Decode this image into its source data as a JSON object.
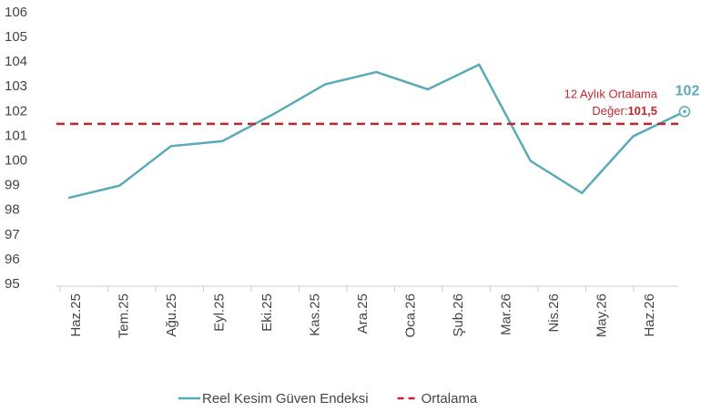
{
  "chart_data": {
    "type": "line",
    "categories": [
      "Haz.25",
      "Tem.25",
      "Ağu.25",
      "Eyl.25",
      "Eki.25",
      "Kas.25",
      "Ara.25",
      "Oca.26",
      "Şub.26",
      "Mar.26",
      "Nis.26",
      "May.26",
      "Haz.26"
    ],
    "series": [
      {
        "name": "Reel Kesim Güven Endeksi",
        "color": "#5aabb8",
        "values": [
          98.5,
          99.0,
          100.6,
          100.8,
          101.9,
          103.1,
          103.6,
          102.9,
          103.9,
          100.0,
          98.7,
          101.0,
          102
        ]
      },
      {
        "name": "Ortalama",
        "color": "#c0272d",
        "dashed": true,
        "average": {
          "value": 101.5,
          "label": "101,5"
        }
      }
    ],
    "annotation": "12 Aylık Ortalama",
    "annotation_prefix": "Değer:",
    "ylim": [
      95,
      106
    ],
    "yticks": [
      95,
      96,
      97,
      98,
      99,
      100,
      101,
      102,
      103,
      104,
      105,
      106
    ]
  }
}
